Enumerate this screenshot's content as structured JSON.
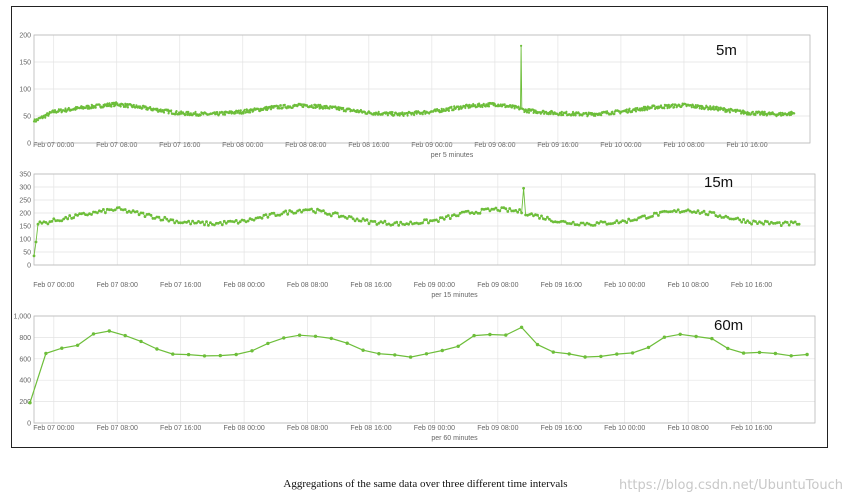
{
  "chart_data": [
    {
      "type": "line",
      "label": "5m",
      "xlabel": "per 5 minutes",
      "y_ticks": [
        "0",
        "50",
        "100",
        "150",
        "200"
      ],
      "ylim": [
        0,
        200
      ],
      "x_ticks": [
        "Feb 07 00:00",
        "Feb 07 08:00",
        "Feb 07 16:00",
        "Feb 08 00:00",
        "Feb 08 08:00",
        "Feb 08 16:00",
        "Feb 09 00:00",
        "Feb 09 08:00",
        "Feb 09 16:00",
        "Feb 10 00:00",
        "Feb 10 08:00",
        "Feb 10 16:00"
      ],
      "x": [
        "Feb 06 21:30",
        "Feb 07 00:00",
        "Feb 07 04:00",
        "Feb 07 08:00",
        "Feb 07 12:00",
        "Feb 07 16:00",
        "Feb 07 20:00",
        "Feb 08 00:00",
        "Feb 08 04:00",
        "Feb 08 08:00",
        "Feb 08 12:00",
        "Feb 08 16:00",
        "Feb 08 20:00",
        "Feb 09 00:00",
        "Feb 09 04:00",
        "Feb 09 08:00",
        "Feb 09 11:15",
        "Feb 09 11:20",
        "Feb 09 11:25",
        "Feb 09 12:00",
        "Feb 09 16:00",
        "Feb 09 20:00",
        "Feb 10 00:00",
        "Feb 10 04:00",
        "Feb 10 08:00",
        "Feb 10 12:00",
        "Feb 10 16:00",
        "Feb 10 20:00",
        "Feb 10 22:00"
      ],
      "y": [
        40,
        58,
        66,
        72,
        64,
        55,
        53,
        58,
        66,
        70,
        64,
        56,
        53,
        58,
        67,
        72,
        64,
        180,
        62,
        60,
        55,
        53,
        58,
        66,
        70,
        64,
        56,
        53,
        55
      ]
    },
    {
      "type": "line",
      "label": "15m",
      "xlabel": "per 15 minutes",
      "y_ticks": [
        "0",
        "50",
        "100",
        "150",
        "200",
        "250",
        "300",
        "350"
      ],
      "ylim": [
        0,
        350
      ],
      "x_ticks": [
        "Feb 07 00:00",
        "Feb 07 08:00",
        "Feb 07 16:00",
        "Feb 08 00:00",
        "Feb 08 08:00",
        "Feb 08 16:00",
        "Feb 09 00:00",
        "Feb 09 08:00",
        "Feb 09 16:00",
        "Feb 10 00:00",
        "Feb 10 08:00",
        "Feb 10 16:00"
      ],
      "x": [
        "Feb 06 21:30",
        "Feb 06 22:00",
        "Feb 07 00:00",
        "Feb 07 04:00",
        "Feb 07 08:00",
        "Feb 07 12:00",
        "Feb 07 16:00",
        "Feb 07 20:00",
        "Feb 08 00:00",
        "Feb 08 04:00",
        "Feb 08 08:00",
        "Feb 08 12:00",
        "Feb 08 16:00",
        "Feb 08 20:00",
        "Feb 09 00:00",
        "Feb 09 04:00",
        "Feb 09 08:00",
        "Feb 09 11:00",
        "Feb 09 11:15",
        "Feb 09 11:30",
        "Feb 09 16:00",
        "Feb 09 20:00",
        "Feb 10 00:00",
        "Feb 10 04:00",
        "Feb 10 08:00",
        "Feb 10 12:00",
        "Feb 10 16:00",
        "Feb 10 20:00",
        "Feb 10 22:00"
      ],
      "y": [
        35,
        158,
        170,
        195,
        215,
        190,
        165,
        158,
        168,
        195,
        215,
        190,
        165,
        158,
        170,
        200,
        215,
        205,
        295,
        200,
        165,
        158,
        168,
        195,
        212,
        190,
        165,
        158,
        160
      ]
    },
    {
      "type": "line",
      "label": "60m",
      "xlabel": "per 60 minutes",
      "y_ticks": [
        "0",
        "200",
        "400",
        "600",
        "800",
        "1,000"
      ],
      "ylim": [
        0,
        1000
      ],
      "x_ticks": [
        "Feb 07 00:00",
        "Feb 07 08:00",
        "Feb 07 16:00",
        "Feb 08 00:00",
        "Feb 08 08:00",
        "Feb 08 16:00",
        "Feb 09 00:00",
        "Feb 09 08:00",
        "Feb 09 16:00",
        "Feb 10 00:00",
        "Feb 10 08:00",
        "Feb 10 16:00"
      ],
      "x": [
        "Feb 06 21:00",
        "Feb 06 23:00",
        "Feb 07 01:00",
        "Feb 07 03:00",
        "Feb 07 05:00",
        "Feb 07 07:00",
        "Feb 07 09:00",
        "Feb 07 11:00",
        "Feb 07 13:00",
        "Feb 07 15:00",
        "Feb 07 17:00",
        "Feb 07 19:00",
        "Feb 07 21:00",
        "Feb 07 23:00",
        "Feb 08 01:00",
        "Feb 08 03:00",
        "Feb 08 05:00",
        "Feb 08 07:00",
        "Feb 08 09:00",
        "Feb 08 11:00",
        "Feb 08 13:00",
        "Feb 08 15:00",
        "Feb 08 17:00",
        "Feb 08 19:00",
        "Feb 08 21:00",
        "Feb 08 23:00",
        "Feb 09 01:00",
        "Feb 09 03:00",
        "Feb 09 05:00",
        "Feb 09 07:00",
        "Feb 09 09:00",
        "Feb 09 11:00",
        "Feb 09 13:00",
        "Feb 09 15:00",
        "Feb 09 17:00",
        "Feb 09 19:00",
        "Feb 09 21:00",
        "Feb 09 23:00",
        "Feb 10 01:00",
        "Feb 10 03:00",
        "Feb 10 05:00",
        "Feb 10 07:00",
        "Feb 10 09:00",
        "Feb 10 11:00",
        "Feb 10 13:00",
        "Feb 10 15:00",
        "Feb 10 17:00",
        "Feb 10 19:00",
        "Feb 10 21:00",
        "Feb 10 23:00"
      ],
      "y": [
        190,
        650,
        690,
        730,
        830,
        850,
        810,
        760,
        700,
        650,
        630,
        630,
        640,
        640,
        680,
        740,
        800,
        830,
        810,
        790,
        750,
        690,
        650,
        630,
        610,
        640,
        680,
        720,
        810,
        830,
        830,
        900,
        730,
        660,
        640,
        620,
        620,
        650,
        660,
        700,
        800,
        830,
        810,
        780,
        700,
        660,
        660,
        640,
        620,
        640
      ]
    }
  ],
  "caption": "Aggregations of the same data over three different time intervals",
  "watermark": "https://blog.csdn.net/UbuntuTouch",
  "colors": {
    "line": "#6dbe3a",
    "grid": "#e3e3e3",
    "axis": "#b8b8b8"
  }
}
